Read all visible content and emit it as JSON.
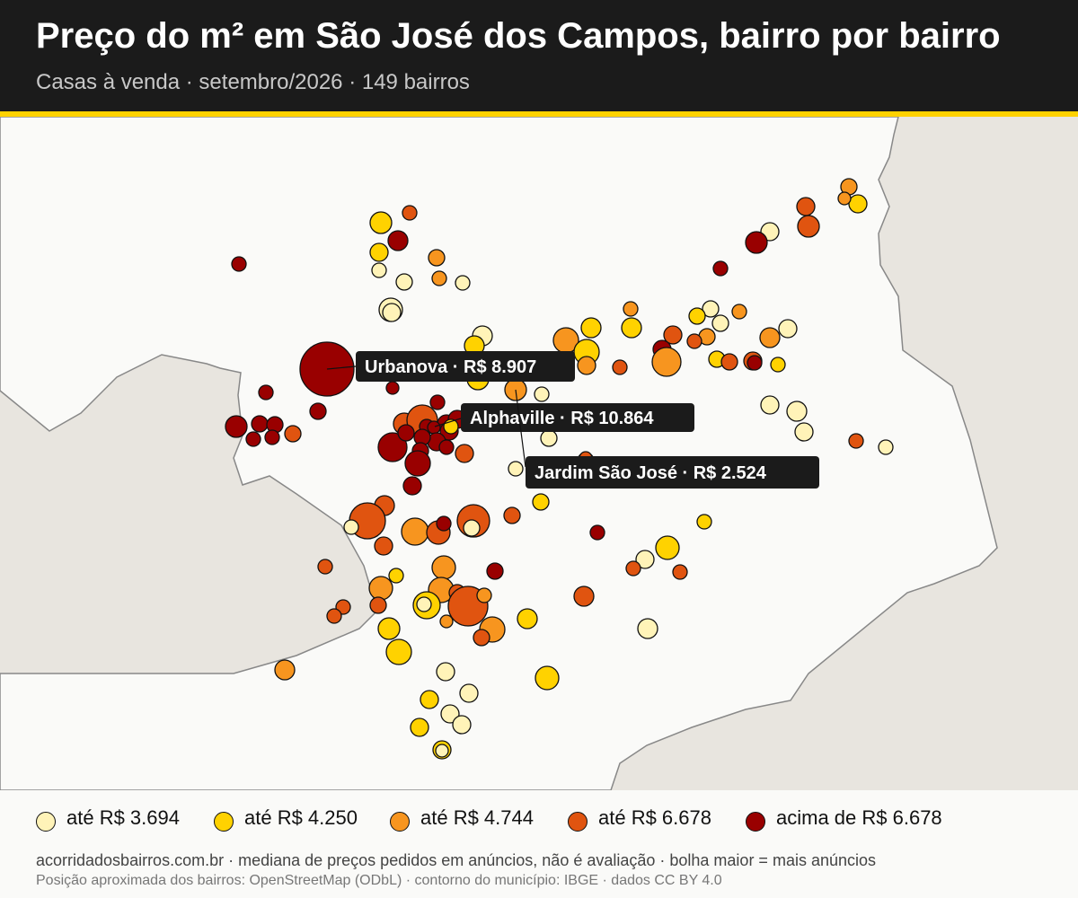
{
  "header": {
    "title": "Preço do m² em São José dos Campos, bairro por bairro",
    "subtitle": "Casas à venda · setembro/2026 · 149 bairros"
  },
  "colors": {
    "header_bg": "#1b1b1b",
    "accent_stripe": "#ffd200",
    "municipio_fill": "#fafaf8",
    "outside_fill": "#e8e5df"
  },
  "legend": [
    {
      "label": "até R$ 3.694",
      "color": "#fff3b8"
    },
    {
      "label": "até R$ 4.250",
      "color": "#ffd200"
    },
    {
      "label": "até R$ 4.744",
      "color": "#f7951f"
    },
    {
      "label": "até R$ 6.678",
      "color": "#e05410"
    },
    {
      "label": "acima de R$ 6.678",
      "color": "#990000"
    }
  ],
  "callouts": [
    {
      "name": "Urbanova",
      "price": "R$ 8.907",
      "text": "Urbanova · R$ 8.907"
    },
    {
      "name": "Alphaville",
      "price": "R$ 10.864",
      "text": "Alphaville · R$ 10.864"
    },
    {
      "name": "Jardim São José",
      "price": "R$ 2.524",
      "text": "Jardim São José · R$ 2.524"
    }
  ],
  "footer": {
    "source": "acorridadosbairros.com.br · mediana de preços pedidos em anúncios, não é avaliação · bolha maior = mais anúncios",
    "credits": "Posição aproximada dos bairros: OpenStreetMap (ODbL) · contorno do município: IBGE · dados CC BY 4.0"
  }
}
